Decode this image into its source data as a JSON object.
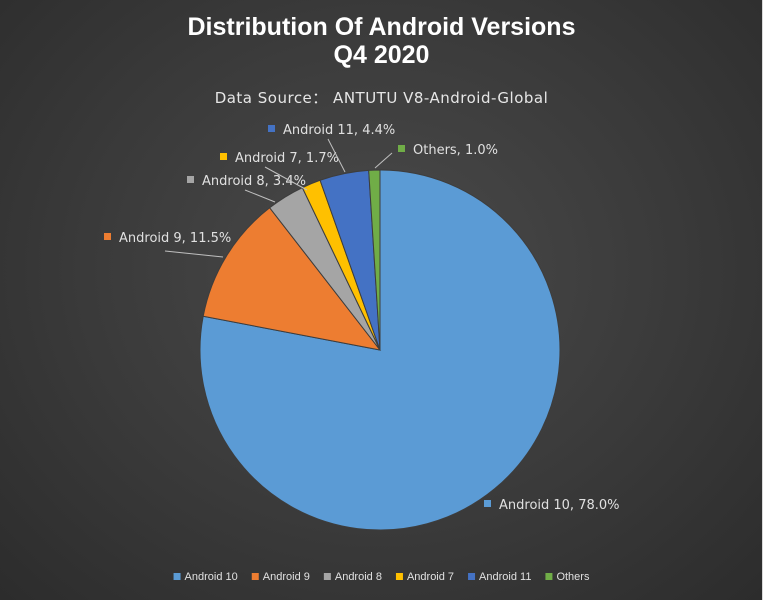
{
  "chart_data": {
    "type": "pie",
    "title_line1": "Distribution Of Android Versions",
    "title_line2": "Q4 2020",
    "subtitle": "Data Source： ANTUTU V8-Android-Global",
    "start_angle_deg": 0,
    "direction": "clockwise",
    "legend_position": "bottom",
    "slices": [
      {
        "name": "Android 10",
        "value": 78.0,
        "label": "Android 10, 78.0%",
        "color": "#5b9bd5"
      },
      {
        "name": "Android 9",
        "value": 11.5,
        "label": "Android 9, 11.5%",
        "color": "#ed7d31"
      },
      {
        "name": "Android 8",
        "value": 3.4,
        "label": "Android 8, 3.4%",
        "color": "#a5a5a5"
      },
      {
        "name": "Android 7",
        "value": 1.7,
        "label": "Android 7, 1.7%",
        "color": "#ffc000"
      },
      {
        "name": "Android 11",
        "value": 4.4,
        "label": "Android 11, 4.4%",
        "color": "#4472c4"
      },
      {
        "name": "Others",
        "value": 1.0,
        "label": "Others, 1.0%",
        "color": "#70ad47"
      }
    ]
  }
}
